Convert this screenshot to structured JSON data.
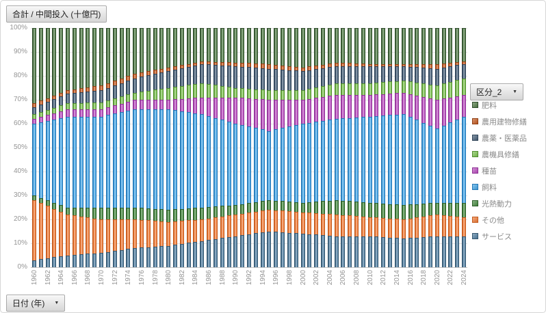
{
  "title_button": "合計 / 中間投入 (十億円)",
  "legend_field_button": "区分_2",
  "axis_field_button": "日付 (年)",
  "dropdown_arrow": "▼",
  "chart_data": {
    "type": "bar",
    "stacking": "percent",
    "title": "合計 / 中間投入 (十億円)",
    "legend_title": "区分_2",
    "legend_position": "right",
    "axis_field": "日付 (年)",
    "grid": true,
    "ylim": [
      0,
      100
    ],
    "y_ticks": [
      "100%",
      "90%",
      "80%",
      "70%",
      "60%",
      "50%",
      "40%",
      "30%",
      "20%",
      "10%",
      "0%"
    ],
    "x_tick_every": 2,
    "years": [
      1960,
      1961,
      1962,
      1963,
      1964,
      1965,
      1966,
      1967,
      1968,
      1969,
      1970,
      1971,
      1972,
      1973,
      1974,
      1975,
      1976,
      1977,
      1978,
      1979,
      1980,
      1981,
      1982,
      1983,
      1984,
      1985,
      1986,
      1987,
      1988,
      1989,
      1990,
      1991,
      1992,
      1993,
      1994,
      1995,
      1996,
      1997,
      1998,
      1999,
      2000,
      2001,
      2002,
      2003,
      2004,
      2005,
      2006,
      2007,
      2008,
      2009,
      2010,
      2011,
      2012,
      2013,
      2014,
      2015,
      2016,
      2017,
      2018,
      2019,
      2020,
      2021,
      2022,
      2023,
      2024
    ],
    "series_bottom_to_top": [
      {
        "name": "サービス",
        "color": "#4f7da0",
        "edge": "#35576f",
        "values": [
          3,
          3.4,
          3.8,
          4.2,
          4.6,
          5,
          5.2,
          5.4,
          5.6,
          5.8,
          6,
          6.4,
          6.8,
          7.2,
          7.6,
          8,
          8.2,
          8.4,
          8.6,
          8.8,
          9,
          9.4,
          9.8,
          10.2,
          10.6,
          11,
          11.4,
          11.8,
          12.2,
          12.6,
          13,
          13.4,
          13.8,
          14.2,
          14.6,
          15,
          14.8,
          14.6,
          14.4,
          14.2,
          14,
          13.8,
          13.6,
          13.4,
          13.2,
          13,
          13,
          13,
          13,
          13,
          13,
          12.8,
          12.6,
          12.4,
          12.2,
          12,
          12.2,
          12.4,
          12.6,
          12.8,
          13,
          13,
          13,
          13,
          13
        ]
      },
      {
        "name": "その他",
        "color": "#f07c38",
        "edge": "#c2591c",
        "values": [
          25,
          23.4,
          21.8,
          20.2,
          18.6,
          17,
          16.4,
          15.8,
          15.2,
          14.6,
          14,
          13.6,
          13.2,
          12.8,
          12.4,
          12,
          11.6,
          11.2,
          10.8,
          10.4,
          10,
          9.8,
          9.6,
          9.4,
          9.2,
          9,
          9,
          9,
          9,
          9,
          9,
          9,
          9,
          9,
          9,
          9,
          9,
          9,
          9,
          9,
          9,
          9,
          9,
          9,
          9,
          9,
          8.8,
          8.6,
          8.4,
          8.2,
          8,
          8,
          8,
          8,
          8,
          8,
          8.2,
          8.4,
          8.6,
          8.8,
          9,
          8.75,
          8.5,
          8.25,
          8
        ]
      },
      {
        "name": "光熱動力",
        "color": "#478b41",
        "edge": "#2b5c27",
        "values": [
          2,
          2.2,
          2.4,
          2.6,
          2.8,
          3,
          3.4,
          3.8,
          4.2,
          4.6,
          5,
          5,
          5,
          5,
          5,
          5,
          5,
          5,
          5,
          5,
          5,
          5,
          5,
          5,
          5,
          5,
          4.8,
          4.6,
          4.4,
          4.2,
          4,
          4,
          4,
          4,
          4,
          4,
          4,
          4,
          4,
          4,
          4,
          4.4,
          4.8,
          5.2,
          5.6,
          6,
          6,
          6,
          6,
          6,
          6,
          6,
          6,
          6,
          6,
          6,
          5.8,
          5.6,
          5.4,
          5.2,
          5,
          5.25,
          5.5,
          5.75,
          6
        ]
      },
      {
        "name": "飼料",
        "color": "#45a6e6",
        "edge": "#2275b4",
        "values": [
          30,
          31.6,
          33.2,
          34.8,
          36.4,
          38,
          38,
          38,
          38,
          38,
          38,
          38.6,
          39.2,
          39.8,
          40.4,
          41,
          41.2,
          41.4,
          41.6,
          41.8,
          42,
          41.4,
          40.8,
          40.2,
          39.6,
          39,
          38,
          37,
          36,
          35,
          34,
          33,
          32,
          31,
          30,
          29,
          29.8,
          30.6,
          31.4,
          32.2,
          33,
          33.2,
          33.4,
          33.6,
          33.8,
          34,
          34.4,
          34.8,
          35.2,
          35.6,
          36,
          36.4,
          36.8,
          37.2,
          37.6,
          38,
          36.6,
          35.2,
          33.8,
          32.4,
          31,
          32.25,
          33.5,
          34.75,
          36
        ]
      },
      {
        "name": "種苗",
        "color": "#bb4fc0",
        "edge": "#8e3295",
        "values": [
          2,
          2.2,
          2.4,
          2.6,
          2.8,
          3,
          3,
          3,
          3,
          3,
          3,
          3.2,
          3.4,
          3.6,
          3.8,
          4,
          4,
          4,
          4,
          4,
          4,
          4.6,
          5.2,
          5.8,
          6.4,
          7,
          7.8,
          8.6,
          9.4,
          10.2,
          11,
          11.4,
          11.8,
          12.2,
          12.6,
          13,
          12.4,
          11.8,
          11.2,
          10.6,
          10,
          10,
          10,
          10,
          10,
          10,
          9.8,
          9.6,
          9.4,
          9.2,
          9,
          9,
          9,
          9,
          9,
          9,
          9.6,
          10.2,
          10.8,
          11.4,
          12,
          11.25,
          10.5,
          9.75,
          9
        ]
      },
      {
        "name": "農機具修繕",
        "color": "#7cc24f",
        "edge": "#4f8a2e",
        "values": [
          2,
          2.1,
          2.2,
          2.3,
          2.4,
          2.5,
          2.6,
          2.7,
          2.8,
          2.9,
          3,
          3,
          3,
          3,
          3,
          3,
          3.4,
          3.8,
          4.2,
          4.6,
          5,
          5.2,
          5.4,
          5.6,
          5.8,
          6,
          5.6,
          5.2,
          4.8,
          4.4,
          4,
          4,
          4,
          4,
          4,
          4,
          4,
          4,
          4,
          4,
          4,
          4.2,
          4.4,
          4.6,
          4.8,
          5,
          5,
          5,
          5,
          5,
          5,
          5,
          5,
          5,
          5,
          5,
          5.2,
          5.4,
          5.6,
          5.8,
          6,
          6.25,
          6.5,
          6.75,
          7
        ]
      },
      {
        "name": "農薬・医薬品",
        "color": "#465f78",
        "edge": "#2e4256",
        "values": [
          3,
          3.2,
          3.4,
          3.6,
          3.8,
          4,
          4.2,
          4.4,
          4.6,
          4.8,
          5,
          5.2,
          5.4,
          5.6,
          5.8,
          6,
          6.2,
          6.4,
          6.6,
          6.8,
          7,
          7.2,
          7.4,
          7.6,
          7.8,
          8,
          8.2,
          8.4,
          8.6,
          8.8,
          9,
          9,
          9,
          9,
          9,
          9,
          8.8,
          8.6,
          8.4,
          8.2,
          8,
          7.8,
          7.6,
          7.4,
          7.2,
          7,
          7,
          7,
          7,
          7,
          7,
          6.8,
          6.6,
          6.4,
          6.2,
          6,
          6.2,
          6.4,
          6.6,
          6.8,
          7,
          6.75,
          6.5,
          6.25,
          6
        ]
      },
      {
        "name": "農用建物修繕",
        "color": "#c55a20",
        "edge": "#8f3e13",
        "values": [
          1.5,
          1.5,
          1.5,
          1.5,
          1.5,
          1.5,
          1.6,
          1.7,
          1.8,
          1.9,
          2,
          2,
          2,
          2,
          2,
          2,
          1.9,
          1.8,
          1.7,
          1.6,
          1.5,
          1.4,
          1.3,
          1.2,
          1.1,
          1,
          1.1,
          1.2,
          1.3,
          1.4,
          1.5,
          1.6,
          1.7,
          1.8,
          1.9,
          2,
          1.9,
          1.8,
          1.7,
          1.6,
          1.5,
          1.5,
          1.5,
          1.5,
          1.5,
          1.5,
          1.4,
          1.3,
          1.2,
          1.1,
          1,
          1,
          1,
          1,
          1,
          1,
          1.2,
          1.4,
          1.6,
          1.8,
          2,
          1.75,
          1.5,
          1.25,
          1
        ]
      },
      {
        "name": "肥料",
        "color": "#4f7a44",
        "edge": "#2f4d2b",
        "values": [
          31.5,
          30.4,
          29.3,
          28.2,
          27.1,
          26,
          25.6,
          25.2,
          24.8,
          24.4,
          24,
          23,
          22,
          21,
          20,
          19,
          18.5,
          18,
          17.5,
          17,
          16.5,
          16,
          15.5,
          15,
          14.5,
          14,
          14.1,
          14.2,
          14.3,
          14.4,
          14.5,
          14.6,
          14.7,
          14.8,
          14.9,
          15,
          15.3,
          15.6,
          15.9,
          16.2,
          16.5,
          16.1,
          15.7,
          15.3,
          14.9,
          14.5,
          14.6,
          14.7,
          14.8,
          14.9,
          15,
          15,
          15,
          15,
          15,
          15,
          15,
          15,
          15,
          15,
          15,
          14.75,
          14.5,
          14.25,
          14
        ]
      }
    ]
  }
}
